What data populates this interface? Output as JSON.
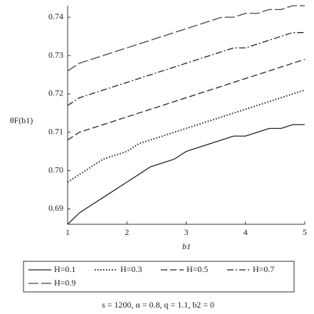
{
  "chart_data": {
    "type": "line",
    "y_label": "θF(b1)",
    "x_label": "b1",
    "caption": "s = 1200, α = 0.8, q = 1.1, b2 = 0",
    "x": [
      1,
      1.2,
      1.4,
      1.6,
      1.8,
      2,
      2.2,
      2.4,
      2.6,
      2.8,
      3,
      3.2,
      3.4,
      3.6,
      3.8,
      4,
      4.2,
      4.4,
      4.6,
      4.8,
      5
    ],
    "series": [
      {
        "name": "H=0.1",
        "color": "#222222",
        "dash": "solid",
        "values": [
          0.686,
          0.689,
          0.691,
          0.693,
          0.695,
          0.697,
          0.699,
          0.701,
          0.702,
          0.703,
          0.705,
          0.706,
          0.707,
          0.708,
          0.709,
          0.709,
          0.71,
          0.711,
          0.711,
          0.712,
          0.712
        ]
      },
      {
        "name": "H=0.3",
        "color": "#222222",
        "dash": "dotted",
        "values": [
          0.697,
          0.699,
          0.701,
          0.703,
          0.704,
          0.705,
          0.707,
          0.708,
          0.709,
          0.71,
          0.711,
          0.712,
          0.713,
          0.714,
          0.715,
          0.716,
          0.717,
          0.718,
          0.719,
          0.72,
          0.721
        ]
      },
      {
        "name": "H=0.5",
        "color": "#222222",
        "dash": "dashed",
        "values": [
          0.708,
          0.71,
          0.711,
          0.712,
          0.713,
          0.714,
          0.715,
          0.716,
          0.717,
          0.718,
          0.719,
          0.72,
          0.721,
          0.722,
          0.723,
          0.724,
          0.725,
          0.726,
          0.727,
          0.728,
          0.729
        ]
      },
      {
        "name": "H=0.7",
        "color": "#222222",
        "dash": "dashdot",
        "values": [
          0.717,
          0.719,
          0.72,
          0.721,
          0.722,
          0.723,
          0.724,
          0.725,
          0.726,
          0.727,
          0.728,
          0.729,
          0.73,
          0.731,
          0.732,
          0.732,
          0.733,
          0.734,
          0.735,
          0.736,
          0.736
        ]
      },
      {
        "name": "H=0.9",
        "color": "#444444",
        "dash": "longdash",
        "values": [
          0.726,
          0.728,
          0.729,
          0.73,
          0.731,
          0.732,
          0.733,
          0.734,
          0.735,
          0.736,
          0.737,
          0.738,
          0.739,
          0.74,
          0.74,
          0.741,
          0.741,
          0.742,
          0.742,
          0.743,
          0.743
        ]
      }
    ],
    "xlim": [
      1,
      5
    ],
    "xticks": [
      1,
      2,
      3,
      4,
      5
    ],
    "ylim": [
      0.686,
      0.743
    ],
    "yticks": [
      0.69,
      {
        "value": 0.7,
        "label": "0.70"
      },
      0.71,
      0.72,
      0.73,
      0.74
    ]
  }
}
